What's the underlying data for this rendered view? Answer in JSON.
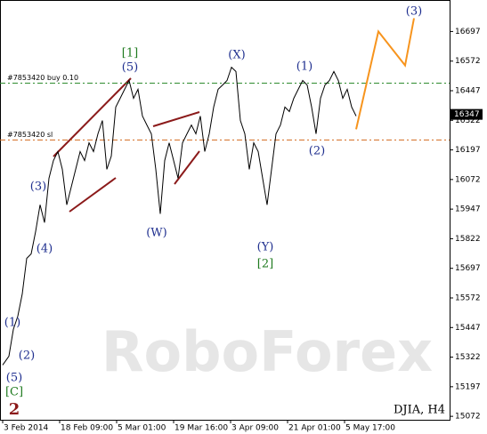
{
  "chart_data": {
    "type": "line",
    "symbol": "DJIA, H4",
    "watermark": "RoboForex",
    "xlim": [
      -3,
      502
    ],
    "ylim": [
      15065,
      16830
    ],
    "xticks": [
      {
        "value": 0,
        "label": "3 Feb 2014"
      },
      {
        "value": 64,
        "label": "18 Feb 09:00"
      },
      {
        "value": 128,
        "label": "5 Mar 01:00"
      },
      {
        "value": 192,
        "label": "19 Mar 16:00"
      },
      {
        "value": 256,
        "label": "3 Apr 09:00"
      },
      {
        "value": 320,
        "label": "21 Apr 01:00"
      },
      {
        "value": 384,
        "label": "5 May 17:00"
      }
    ],
    "yticks": [
      16697,
      16572,
      16447,
      16322,
      16197,
      16072,
      15947,
      15822,
      15697,
      15572,
      15447,
      15322,
      15197,
      15072
    ],
    "last_price": 16347,
    "levels": [
      {
        "label": "#7853420 buy 0.10",
        "value": 16479,
        "color": "#2e8b2e"
      },
      {
        "label": "#7853420 sl",
        "value": 16239,
        "color": "#d2691e"
      }
    ],
    "series": [
      {
        "name": "DJIA, H4",
        "color": "#000000",
        "x": [
          0,
          7,
          12,
          17,
          22,
          27,
          32,
          37,
          42,
          47,
          52,
          57,
          62,
          67,
          72,
          77,
          82,
          87,
          92,
          97,
          102,
          107,
          112,
          117,
          122,
          127,
          132,
          137,
          142,
          147,
          152,
          157,
          162,
          167,
          172,
          177,
          182,
          187,
          192,
          197,
          202,
          207,
          212,
          217,
          222,
          227,
          232,
          237,
          242,
          247,
          252,
          257,
          262,
          267,
          272,
          277,
          282,
          287,
          292,
          297,
          302,
          307,
          312,
          317,
          322,
          327,
          332,
          337,
          342,
          347,
          352,
          357,
          362,
          367,
          372,
          377,
          382,
          387,
          392,
          397
        ],
        "values": [
          15289,
          15326,
          15439,
          15495,
          15589,
          15739,
          15758,
          15852,
          15965,
          15890,
          16077,
          16152,
          16190,
          16115,
          15965,
          16040,
          16115,
          16190,
          16152,
          16227,
          16190,
          16265,
          16321,
          16115,
          16171,
          16378,
          16415,
          16453,
          16490,
          16415,
          16453,
          16340,
          16302,
          16265,
          16115,
          15927,
          16152,
          16227,
          16152,
          16077,
          16227,
          16265,
          16302,
          16265,
          16340,
          16190,
          16265,
          16378,
          16453,
          16471,
          16490,
          16546,
          16528,
          16321,
          16265,
          16115,
          16227,
          16190,
          16077,
          15965,
          16115,
          16265,
          16302,
          16378,
          16359,
          16415,
          16453,
          16490,
          16471,
          16378,
          16265,
          16415,
          16471,
          16490,
          16528,
          16490,
          16415,
          16453,
          16378,
          16340
        ]
      },
      {
        "color": "#f7941d",
        "x": [
          397,
          422,
          452,
          462
        ],
        "values": [
          16284,
          16697,
          16554,
          16753
        ]
      }
    ],
    "annotations": [
      {
        "text": "(3)",
        "color": "#1f2f8f"
      },
      {
        "text": "[1]",
        "color": "#1e7a1e"
      },
      {
        "text": "(5)",
        "color": "#1f2f8f"
      },
      {
        "text": "(X)",
        "color": "#1f2f8f"
      },
      {
        "text": "(1)",
        "color": "#1f2f8f"
      },
      {
        "text": "(2)",
        "color": "#1f2f8f"
      },
      {
        "text": "(W)",
        "color": "#1f2f8f"
      },
      {
        "text": "(Y)",
        "color": "#1f2f8f"
      },
      {
        "text": "[2]",
        "color": "#1e7a1e"
      },
      {
        "text": "(3)",
        "color": "#1f2f8f"
      },
      {
        "text": "(4)",
        "color": "#1f2f8f"
      },
      {
        "text": "(1)",
        "color": "#1f2f8f"
      },
      {
        "text": "(2)",
        "color": "#1f2f8f"
      },
      {
        "text": "(5)",
        "color": "#1f2f8f"
      },
      {
        "text": "[C]",
        "color": "#1e7a1e"
      },
      {
        "text": "2",
        "color": "#8b1a1a"
      }
    ]
  }
}
